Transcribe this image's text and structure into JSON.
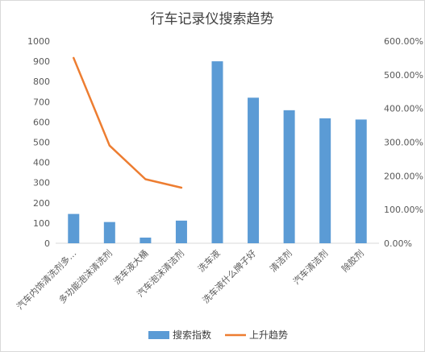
{
  "chart_data": {
    "type": "bar",
    "title": "行车记录仪搜索趋势",
    "categories": [
      "汽车内饰清洗剂多…",
      "多功能泡沫清洗剂",
      "洗车液大桶",
      "汽车泡沫清洁剂",
      "洗车液",
      "洗车液什么牌子好",
      "清洁剂",
      "汽车清洁剂",
      "除胶剂"
    ],
    "series": [
      {
        "name": "搜索指数",
        "type": "bar",
        "axis": "left",
        "color": "#5b9bd5",
        "values": [
          145,
          105,
          28,
          112,
          900,
          720,
          658,
          618,
          612
        ]
      },
      {
        "name": "上升趋势",
        "type": "line",
        "axis": "right",
        "color": "#ed7d31",
        "values": [
          550,
          290,
          190,
          165,
          null,
          null,
          null,
          null,
          null
        ]
      }
    ],
    "left_axis": {
      "min": 0,
      "max": 1000,
      "ticks": [
        "0",
        "100",
        "200",
        "300",
        "400",
        "500",
        "600",
        "700",
        "800",
        "900",
        "1000"
      ]
    },
    "right_axis": {
      "min": 0,
      "max": 600,
      "ticks": [
        "0.00%",
        "100.00%",
        "200.00%",
        "300.00%",
        "400.00%",
        "500.00%",
        "600.00%"
      ]
    },
    "grid": false,
    "legend_position": "bottom"
  }
}
